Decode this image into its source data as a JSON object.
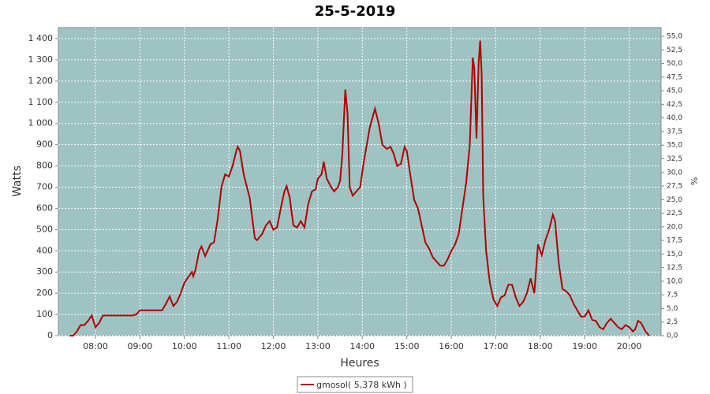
{
  "chart_data": {
    "type": "line",
    "title": "25-5-2019",
    "x_label": "Heures",
    "y_label": "Watts",
    "y2_label": "%",
    "xlim": [
      "07:10",
      "20:43"
    ],
    "ylim": [
      0,
      1452
    ],
    "y2lim": [
      0,
      56.6
    ],
    "grid": true,
    "legend": "bottom",
    "plot_background": "#9fc3c3",
    "xticks": [
      "08:00",
      "09:00",
      "10:00",
      "11:00",
      "12:00",
      "13:00",
      "14:00",
      "15:00",
      "16:00",
      "17:00",
      "18:00",
      "19:00",
      "20:00"
    ],
    "yticks": [
      0,
      100,
      200,
      300,
      400,
      500,
      600,
      700,
      800,
      900,
      {
        "value": 1000,
        "label": "1 000"
      },
      {
        "value": 1100,
        "label": "1 100"
      },
      {
        "value": 1200,
        "label": "1 200"
      },
      {
        "value": 1300,
        "label": "1 300"
      },
      {
        "value": 1400,
        "label": "1 400"
      }
    ],
    "y2ticks": [
      {
        "value": 0,
        "label": "0,0"
      },
      {
        "value": 2.5,
        "label": "2,5"
      },
      {
        "value": 5,
        "label": "5,0"
      },
      {
        "value": 7.5,
        "label": "7,5"
      },
      {
        "value": 10,
        "label": "10,0"
      },
      {
        "value": 12.5,
        "label": "12,5"
      },
      {
        "value": 15,
        "label": "15,0"
      },
      {
        "value": 17.5,
        "label": "17,5"
      },
      {
        "value": 20,
        "label": "20,0"
      },
      {
        "value": 22.5,
        "label": "22,5"
      },
      {
        "value": 25,
        "label": "25,0"
      },
      {
        "value": 27.5,
        "label": "27,5"
      },
      {
        "value": 30,
        "label": "30,0"
      },
      {
        "value": 32.5,
        "label": "32,5"
      },
      {
        "value": 35,
        "label": "35,0"
      },
      {
        "value": 37.5,
        "label": "37,5"
      },
      {
        "value": 40,
        "label": "40,0"
      },
      {
        "value": 42.5,
        "label": "42,5"
      },
      {
        "value": 45,
        "label": "45,0"
      },
      {
        "value": 47.5,
        "label": "47,5"
      },
      {
        "value": 50,
        "label": "50,0"
      },
      {
        "value": 52.5,
        "label": "52,5"
      },
      {
        "value": 55,
        "label": "55,0"
      }
    ],
    "x": [
      "07:25",
      "07:30",
      "07:35",
      "07:40",
      "07:45",
      "07:50",
      "07:55",
      "08:00",
      "08:05",
      "08:10",
      "08:15",
      "08:20",
      "08:30",
      "08:40",
      "08:50",
      "08:55",
      "09:00",
      "09:30",
      "09:35",
      "09:40",
      "09:45",
      "09:50",
      "09:55",
      "10:00",
      "10:10",
      "10:12",
      "10:15",
      "10:20",
      "10:23",
      "10:28",
      "10:35",
      "10:40",
      "10:45",
      "10:50",
      "10:55",
      "11:00",
      "11:05",
      "11:10",
      "11:12",
      "11:15",
      "11:20",
      "11:28",
      "11:35",
      "11:38",
      "11:45",
      "11:50",
      "11:55",
      "12:00",
      "12:05",
      "12:10",
      "12:15",
      "12:18",
      "12:22",
      "12:27",
      "12:32",
      "12:37",
      "12:42",
      "12:47",
      "12:52",
      "12:57",
      "13:00",
      "13:05",
      "13:08",
      "13:12",
      "13:18",
      "13:22",
      "13:27",
      "13:30",
      "13:33",
      "13:37",
      "13:40",
      "13:43",
      "13:47",
      "13:52",
      "13:57",
      "14:02",
      "14:10",
      "14:17",
      "14:22",
      "14:27",
      "14:33",
      "14:38",
      "14:42",
      "14:47",
      "14:52",
      "14:57",
      "15:00",
      "15:05",
      "15:10",
      "15:15",
      "15:20",
      "15:25",
      "15:30",
      "15:35",
      "15:40",
      "15:45",
      "15:50",
      "15:55",
      "16:00",
      "16:05",
      "16:10",
      "16:15",
      "16:20",
      "16:25",
      "16:29",
      "16:31",
      "16:34",
      "16:37",
      "16:39",
      "16:41",
      "16:43",
      "16:47",
      "16:52",
      "16:57",
      "17:02",
      "17:07",
      "17:12",
      "17:17",
      "17:22",
      "17:27",
      "17:32",
      "17:37",
      "17:42",
      "17:47",
      "17:52",
      "17:57",
      "18:02",
      "18:07",
      "18:12",
      "18:17",
      "18:20",
      "18:25",
      "18:30",
      "18:35",
      "18:40",
      "18:45",
      "18:50",
      "18:55",
      "19:00",
      "19:05",
      "19:10",
      "19:15",
      "19:20",
      "19:25",
      "19:30",
      "19:35",
      "19:40",
      "19:45",
      "19:50",
      "19:55",
      "20:00",
      "20:05",
      "20:08",
      "20:12",
      "20:16",
      "20:22",
      "20:27"
    ],
    "series": [
      {
        "name": "gmosol( 5,378 kWh )",
        "color": "#b00000",
        "values": [
          0,
          0,
          20,
          50,
          50,
          70,
          95,
          40,
          60,
          95,
          95,
          95,
          95,
          95,
          95,
          100,
          120,
          120,
          150,
          185,
          140,
          160,
          200,
          250,
          300,
          280,
          310,
          400,
          420,
          375,
          430,
          440,
          550,
          700,
          760,
          750,
          800,
          870,
          890,
          870,
          760,
          650,
          460,
          450,
          480,
          520,
          540,
          500,
          510,
          600,
          680,
          705,
          650,
          520,
          510,
          540,
          510,
          620,
          680,
          690,
          740,
          760,
          820,
          740,
          700,
          680,
          700,
          730,
          850,
          1160,
          1050,
          700,
          660,
          680,
          700,
          820,
          980,
          1070,
          1000,
          900,
          880,
          890,
          860,
          800,
          810,
          890,
          870,
          750,
          640,
          600,
          520,
          440,
          410,
          370,
          350,
          330,
          330,
          360,
          400,
          430,
          480,
          600,
          720,
          900,
          1310,
          1260,
          930,
          1290,
          1390,
          1230,
          660,
          400,
          250,
          170,
          140,
          180,
          190,
          240,
          240,
          180,
          140,
          160,
          200,
          270,
          200,
          430,
          380,
          450,
          500,
          570,
          540,
          340,
          220,
          210,
          190,
          150,
          120,
          90,
          90,
          120,
          75,
          70,
          40,
          30,
          60,
          80,
          60,
          40,
          30,
          50,
          40,
          20,
          30,
          70,
          60,
          20,
          0
        ]
      }
    ]
  }
}
